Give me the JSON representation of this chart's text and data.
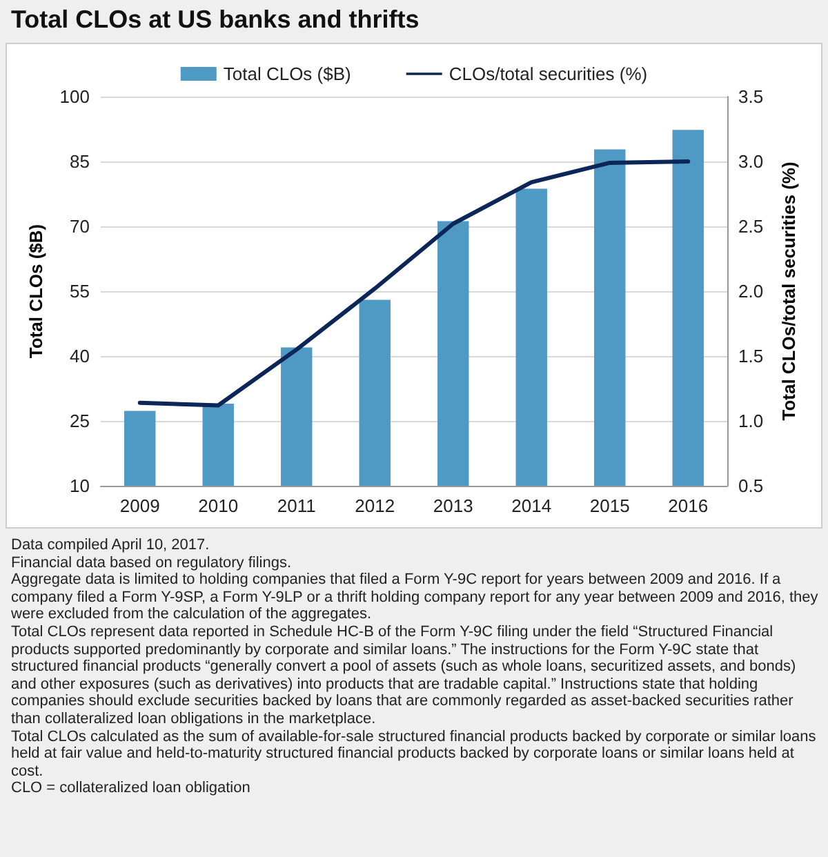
{
  "chart_data": {
    "type": "bar",
    "title": "Total CLOs at US banks and thrifts",
    "categories": [
      "2009",
      "2010",
      "2011",
      "2012",
      "2013",
      "2014",
      "2015",
      "2016"
    ],
    "series": [
      {
        "name": "Total CLOs ($B)",
        "color": "#4f9ac5",
        "values": [
          27.3,
          29,
          42,
          53,
          71.2,
          78.7,
          87.8,
          92.3
        ]
      },
      {
        "name": "CLOs/total securities (%)",
        "type": "line",
        "axis": "y2",
        "color": "#0c2657",
        "values": [
          1.14,
          1.12,
          1.55,
          2.02,
          2.52,
          2.84,
          2.99,
          3.0
        ]
      }
    ],
    "ylabel": "Total CLOs ($B)",
    "y2label": "Total CLOs/total securities (%)",
    "ylim": [
      10,
      100
    ],
    "yticks": [
      10,
      25,
      40,
      55,
      70,
      85,
      100
    ],
    "y2lim": [
      0.5,
      3.5
    ],
    "y2ticks": [
      0.5,
      {
        "value": 1,
        "label": "1.0"
      },
      1.5,
      {
        "value": 2,
        "label": "2.0"
      },
      2.5,
      {
        "value": 3,
        "label": "3.0"
      },
      3.5
    ],
    "grid": "y",
    "legend": "top",
    "marker": "none",
    "line_style": "solid",
    "annotations": [
      "Data compiled April 10, 2017.",
      "Financial data based on regulatory filings.",
      "Aggregate data is limited to holding companies that filed a Form Y-9C report for years between 2009 and 2016. If a company filed a Form Y-9SP, a Form Y-9LP or a thrift holding company report for any year between 2009 and 2016, they were excluded from the calculation of the aggregates.",
      "Total CLOs represent data reported in Schedule HC-B of the Form Y-9C filing under the field “Structured Financial products supported predominantly by corporate and similar loans.” The instructions for the Form Y-9C state that structured financial products “generally convert a pool of assets (such as whole loans, securitized assets, and bonds) and other exposures (such as derivatives) into products that are tradable capital.” Instructions state that holding companies should exclude securities backed by loans that are commonly regarded as asset-backed securities rather than collateralized loan obligations in the marketplace.",
      "Total CLOs calculated as the sum of available-for-sale structured financial products backed by corporate or similar loans held at fair value and held-to-maturity structured financial products backed by corporate loans or similar loans held at cost.",
      "CLO = collateralized loan obligation"
    ]
  }
}
